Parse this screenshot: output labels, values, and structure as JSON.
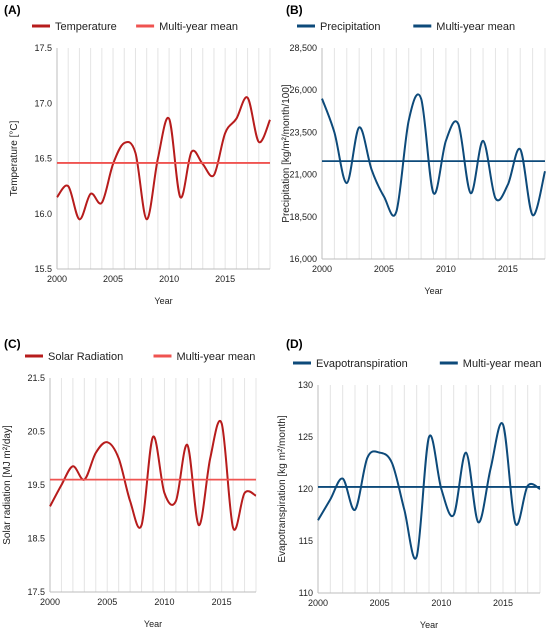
{
  "chart_data": [
    {
      "panel_label": "(A)",
      "type": "line",
      "title": "",
      "xlabel": "Year",
      "ylabel": "Temperature [°C]",
      "xlim": [
        2000,
        2019
      ],
      "ylim": [
        15.5,
        17.5
      ],
      "xticks": [
        2000,
        2005,
        2010,
        2015
      ],
      "xtick_labels": [
        "2000",
        "2005",
        "2010",
        "2015"
      ],
      "yticks": [
        15.5,
        16.0,
        16.5,
        17.0,
        17.5
      ],
      "ytick_labels": [
        "15.5",
        "16.0",
        "16.5",
        "17.0",
        "17.5"
      ],
      "grid": "vertical",
      "legend_position": "top",
      "series": [
        {
          "name": "Temperature",
          "color": "#b71c1c",
          "x": [
            2000,
            2001,
            2002,
            2003,
            2004,
            2005,
            2006,
            2007,
            2008,
            2009,
            2010,
            2011,
            2012,
            2013,
            2014,
            2015,
            2016,
            2017,
            2018,
            2019
          ],
          "values": [
            16.15,
            16.25,
            15.95,
            16.18,
            16.1,
            16.45,
            16.64,
            16.55,
            15.95,
            16.5,
            16.86,
            16.15,
            16.56,
            16.45,
            16.35,
            16.73,
            16.86,
            17.05,
            16.65,
            16.85
          ]
        },
        {
          "name": "Multi-year mean",
          "color": "#ef5350",
          "x": [
            2000,
            2019
          ],
          "values": [
            16.46,
            16.46
          ]
        }
      ]
    },
    {
      "panel_label": "(B)",
      "type": "line",
      "title": "",
      "xlabel": "Year",
      "ylabel": "Precipitation [kg/m²/month/100]",
      "xlim": [
        2000,
        2018
      ],
      "ylim": [
        16000,
        28500
      ],
      "xticks": [
        2000,
        2005,
        2010,
        2015
      ],
      "xtick_labels": [
        "2000",
        "2005",
        "2010",
        "2015"
      ],
      "yticks": [
        16000,
        18500,
        21000,
        23500,
        26000,
        28500
      ],
      "ytick_labels": [
        "16,000",
        "18,500",
        "21,000",
        "23,500",
        "26,000",
        "28,500"
      ],
      "grid": "vertical",
      "legend_position": "top",
      "series": [
        {
          "name": "Precipitation",
          "color": "#0d4a7a",
          "x": [
            2000,
            2001,
            2002,
            2003,
            2004,
            2005,
            2006,
            2007,
            2008,
            2009,
            2010,
            2011,
            2012,
            2013,
            2014,
            2015,
            2016,
            2017,
            2018
          ],
          "values": [
            25500,
            23500,
            20500,
            23800,
            21300,
            19700,
            18800,
            24200,
            25500,
            19900,
            23000,
            24000,
            19900,
            23000,
            19600,
            20400,
            22500,
            18600,
            21200
          ]
        },
        {
          "name": "Multi-year mean",
          "color": "#0d4a7a",
          "x": [
            2000,
            2018
          ],
          "values": [
            21800,
            21800
          ]
        }
      ]
    },
    {
      "panel_label": "(C)",
      "type": "line",
      "title": "",
      "xlabel": "Year",
      "ylabel": "Solar radiation [MJ m²/day]",
      "xlim": [
        2000,
        2018
      ],
      "ylim": [
        17.5,
        21.5
      ],
      "xticks": [
        2000,
        2005,
        2010,
        2015
      ],
      "xtick_labels": [
        "2000",
        "2005",
        "2010",
        "2015"
      ],
      "yticks": [
        17.5,
        18.5,
        19.5,
        20.5,
        21.5
      ],
      "ytick_labels": [
        "17.5",
        "18.5",
        "19.5",
        "20.5",
        "21.5"
      ],
      "grid": "vertical",
      "legend_position": "top",
      "series": [
        {
          "name": "Solar Radiation",
          "color": "#b71c1c",
          "x": [
            2000,
            2001,
            2002,
            2003,
            2004,
            2005,
            2006,
            2007,
            2008,
            2009,
            2010,
            2011,
            2012,
            2013,
            2014,
            2015,
            2016,
            2017,
            2018
          ],
          "values": [
            19.1,
            19.5,
            19.85,
            19.6,
            20.1,
            20.3,
            20.0,
            19.2,
            18.75,
            20.4,
            19.35,
            19.2,
            20.25,
            18.75,
            20.0,
            20.65,
            18.7,
            19.35,
            19.3
          ]
        },
        {
          "name": "Multi-year mean",
          "color": "#ef5350",
          "x": [
            2000,
            2018
          ],
          "values": [
            19.6,
            19.6
          ]
        }
      ]
    },
    {
      "panel_label": "(D)",
      "type": "line",
      "title": "",
      "xlabel": "Year",
      "ylabel": "Evapotranspiration [kg m²/month]",
      "xlim": [
        2000,
        2018
      ],
      "ylim": [
        110,
        130
      ],
      "xticks": [
        2000,
        2005,
        2010,
        2015
      ],
      "xtick_labels": [
        "2000",
        "2005",
        "2010",
        "2015"
      ],
      "yticks": [
        110,
        115,
        120,
        125,
        130
      ],
      "ytick_labels": [
        "110",
        "115",
        "120",
        "125",
        "130"
      ],
      "grid": "vertical",
      "legend_position": "top",
      "series": [
        {
          "name": "Evapotranspiration",
          "color": "#0d4a7a",
          "x": [
            2000,
            2001,
            2002,
            2003,
            2004,
            2005,
            2006,
            2007,
            2008,
            2009,
            2010,
            2011,
            2012,
            2013,
            2014,
            2015,
            2016,
            2017,
            2018
          ],
          "values": [
            117.0,
            119.0,
            121.0,
            118.0,
            123.0,
            123.5,
            122.5,
            118.0,
            113.5,
            125.0,
            120.0,
            117.5,
            123.5,
            116.8,
            122.0,
            126.2,
            116.7,
            120.3,
            120.0
          ]
        },
        {
          "name": "Multi-year mean",
          "color": "#0d4a7a",
          "x": [
            2000,
            2018
          ],
          "values": [
            120.2,
            120.2
          ]
        }
      ]
    }
  ]
}
